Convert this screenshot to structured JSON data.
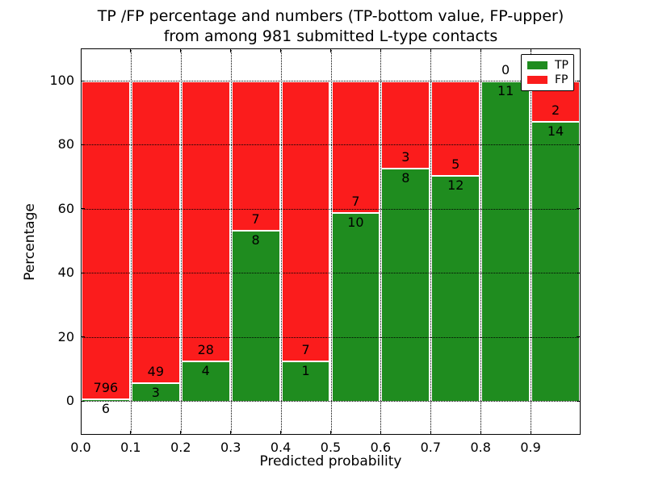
{
  "figure": {
    "title_line1": "TP /FP percentage and numbers (TP-bottom value, FP-upper)",
    "title_line2": "from among 981 submitted L-type contacts"
  },
  "chart_data": {
    "type": "bar",
    "stacked": true,
    "normalized_to_percent": true,
    "title": "TP /FP percentage and numbers (TP-bottom value, FP-upper)\nfrom among 981 submitted L-type contacts",
    "xlabel": "Predicted probability",
    "ylabel": "Percentage",
    "total_contacts": 981,
    "xlim": [
      0.0,
      1.0
    ],
    "ylim": [
      -10.6,
      110.3
    ],
    "bin_width": 0.1,
    "grid": "dotted",
    "x_tick_labels": [
      "0.0",
      "0.1",
      "0.2",
      "0.3",
      "0.4",
      "0.5",
      "0.6",
      "0.7",
      "0.8",
      "0.9"
    ],
    "y_tick_values": [
      0,
      20,
      40,
      60,
      80,
      100
    ],
    "legend_position": "upper right",
    "legend": [
      {
        "label": "TP",
        "color": "#1f8c1f"
      },
      {
        "label": "FP",
        "color": "#fb1c1c"
      }
    ],
    "bins": [
      {
        "x0": 0.0,
        "x1": 0.1,
        "tp": 6,
        "fp": 796,
        "tp_pct": 0.75
      },
      {
        "x0": 0.1,
        "x1": 0.2,
        "tp": 3,
        "fp": 49,
        "tp_pct": 5.77
      },
      {
        "x0": 0.2,
        "x1": 0.3,
        "tp": 4,
        "fp": 28,
        "tp_pct": 12.5
      },
      {
        "x0": 0.3,
        "x1": 0.4,
        "tp": 8,
        "fp": 7,
        "tp_pct": 53.33
      },
      {
        "x0": 0.4,
        "x1": 0.5,
        "tp": 1,
        "fp": 7,
        "tp_pct": 12.5
      },
      {
        "x0": 0.5,
        "x1": 0.6,
        "tp": 10,
        "fp": 7,
        "tp_pct": 58.82
      },
      {
        "x0": 0.6,
        "x1": 0.7,
        "tp": 8,
        "fp": 3,
        "tp_pct": 72.73
      },
      {
        "x0": 0.7,
        "x1": 0.8,
        "tp": 12,
        "fp": 5,
        "tp_pct": 70.59
      },
      {
        "x0": 0.8,
        "x1": 0.9,
        "tp": 11,
        "fp": 0,
        "tp_pct": 100.0
      },
      {
        "x0": 0.9,
        "x1": 1.0,
        "tp": 14,
        "fp": 2,
        "tp_pct": 87.5
      }
    ]
  }
}
